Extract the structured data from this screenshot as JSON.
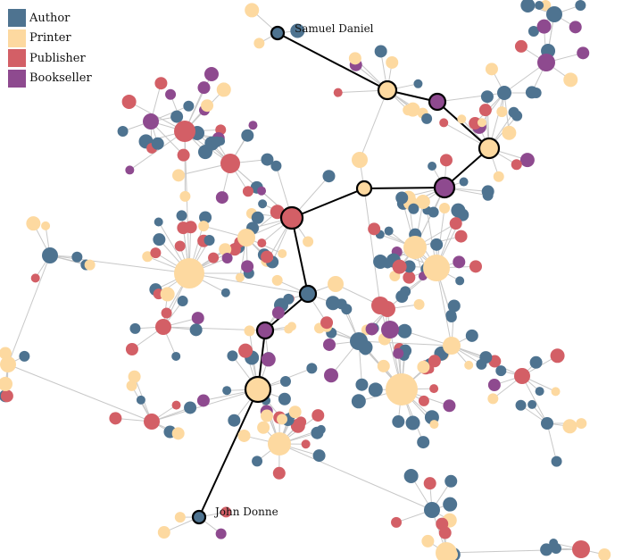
{
  "legend": {
    "items": [
      {
        "label": "Author",
        "color": "#4e7390"
      },
      {
        "label": "Printer",
        "color": "#fdd9a0"
      },
      {
        "label": "Publisher",
        "color": "#d35f66"
      },
      {
        "label": "Bookseller",
        "color": "#8e4a8f"
      }
    ]
  },
  "path_labels": {
    "start": "Samuel Daniel",
    "end": "John Donne"
  },
  "colors": {
    "author": "#4e7390",
    "printer": "#fdd9a0",
    "publisher": "#d35f66",
    "bookseller": "#8e4a8f",
    "edge": "#c8c8c8",
    "path_edge": "#000000"
  }
}
